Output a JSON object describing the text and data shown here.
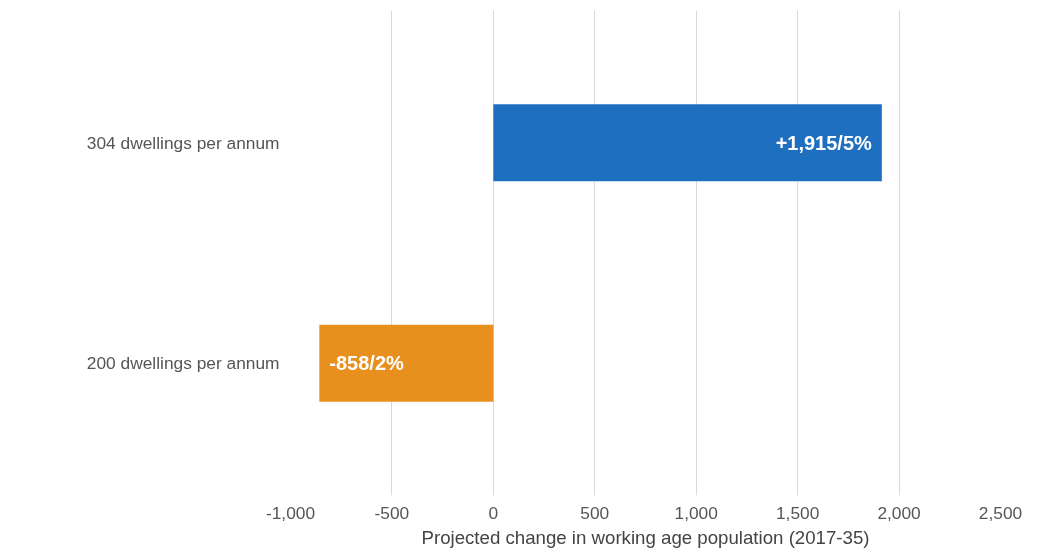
{
  "chart_data": {
    "type": "bar",
    "orientation": "horizontal",
    "xlabel": "Projected change in working age population (2017-35)",
    "categories": [
      "304 dwellings per annum",
      "200 dwellings per annum"
    ],
    "values": [
      1915,
      -858
    ],
    "colors": [
      "#1f6fc0",
      "#e8901e"
    ],
    "value_labels": [
      "+1,915/5%",
      "-858/2%"
    ],
    "xlim": [
      -1000,
      2500
    ],
    "xticks": [
      {
        "value": -1000,
        "label": "-1,000"
      },
      -500,
      0,
      500,
      {
        "value": 1000,
        "label": "1,000"
      },
      {
        "value": 1500,
        "label": "1,500"
      },
      {
        "value": 2000,
        "label": "2,000"
      },
      {
        "value": 2500,
        "label": "2,500"
      }
    ],
    "grid": "x"
  }
}
